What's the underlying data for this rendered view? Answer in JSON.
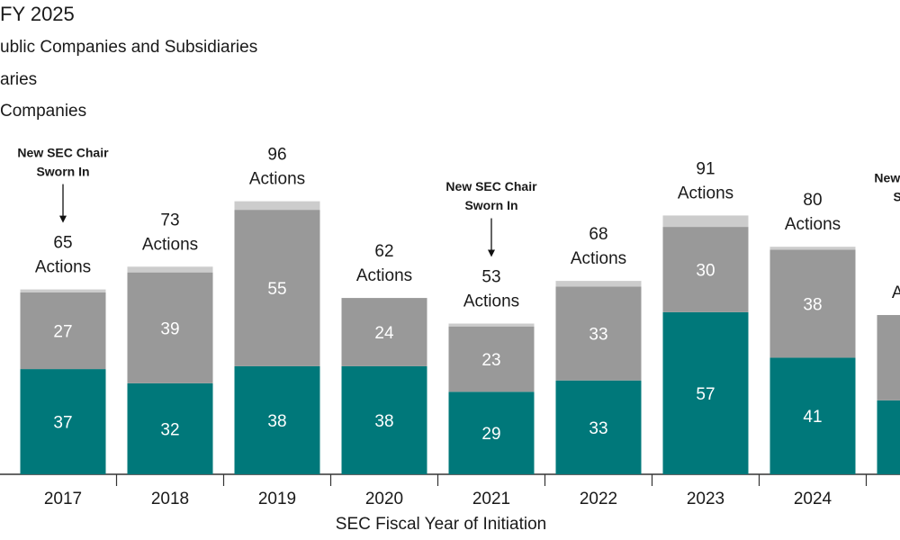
{
  "chart_data": {
    "type": "stacked-bar",
    "title": "FY 2025",
    "x_label": "SEC Fiscal Year of Initiation",
    "categories": [
      "2017",
      "2018",
      "2019",
      "2020",
      "2021",
      "2022",
      "2023",
      "2024",
      null
    ],
    "series": [
      {
        "name": "Companies",
        "color": "#00787a",
        "values": [
          37,
          32,
          38,
          38,
          29,
          33,
          57,
          41,
          26
        ]
      },
      {
        "name": "aries",
        "color": "#999999",
        "values": [
          27,
          39,
          55,
          24,
          23,
          33,
          30,
          38,
          30
        ]
      },
      {
        "name": "ublic Companies and Subsidiaries",
        "color": "#cccccc",
        "values": [
          1,
          2,
          3,
          0,
          1,
          2,
          4,
          1,
          0
        ]
      }
    ],
    "totals": [
      65,
      73,
      96,
      62,
      53,
      68,
      91,
      80,
      null
    ],
    "total_unit": "Actions",
    "ylim": [
      0,
      100
    ],
    "annotations": [
      {
        "lines": [
          "New SEC Chair",
          "Sworn In"
        ],
        "index": 0
      },
      {
        "lines": [
          "New SEC Chair",
          "Sworn In"
        ],
        "index": 4
      },
      {
        "lines": [
          "New SEC Chair",
          "Sworn In"
        ],
        "index": 8
      }
    ]
  }
}
